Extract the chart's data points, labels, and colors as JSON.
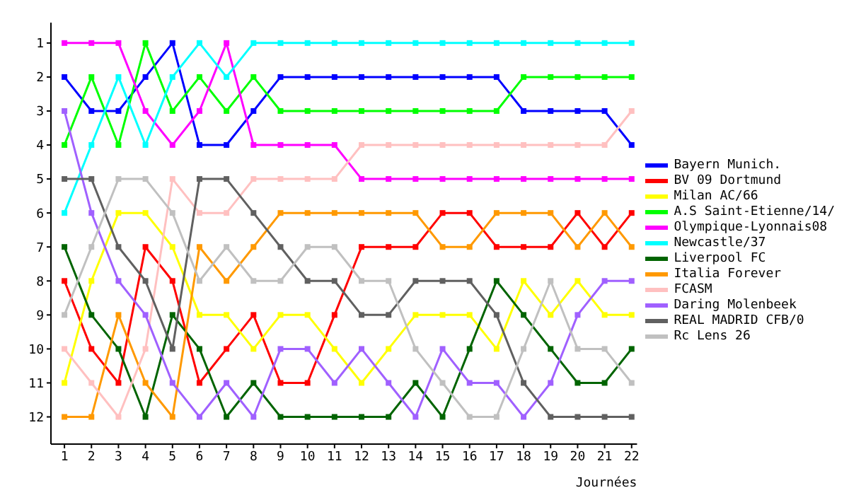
{
  "chart_data": {
    "type": "line",
    "xlabel": "Journées",
    "x": [
      1,
      2,
      3,
      4,
      5,
      6,
      7,
      8,
      9,
      10,
      11,
      12,
      13,
      14,
      15,
      16,
      17,
      18,
      19,
      20,
      21,
      22
    ],
    "xlim": [
      0.5,
      22.2
    ],
    "xticks": [
      1,
      2,
      3,
      4,
      5,
      6,
      7,
      8,
      9,
      10,
      11,
      12,
      13,
      14,
      15,
      16,
      17,
      18,
      19,
      20,
      21,
      22
    ],
    "ylim": [
      12.8,
      0.4
    ],
    "yticks": [
      1,
      2,
      3,
      4,
      5,
      6,
      7,
      8,
      9,
      10,
      11,
      12
    ],
    "grid": false,
    "legend": "right",
    "marker": "square",
    "line_style": "solid",
    "series": [
      {
        "name": "Bayern Munich.",
        "color": "#0000ff",
        "values": [
          2,
          3,
          3,
          2,
          1,
          4,
          4,
          3,
          2,
          2,
          2,
          2,
          2,
          2,
          2,
          2,
          2,
          3,
          3,
          3,
          3,
          4
        ]
      },
      {
        "name": "BV 09 Dortmund",
        "color": "#ff0000",
        "values": [
          8,
          10,
          11,
          7,
          8,
          11,
          10,
          9,
          11,
          11,
          9,
          7,
          7,
          7,
          6,
          6,
          7,
          7,
          7,
          6,
          7,
          6
        ]
      },
      {
        "name": "Milan AC/66",
        "color": "#ffff00",
        "values": [
          11,
          8,
          6,
          6,
          7,
          9,
          9,
          10,
          9,
          9,
          10,
          11,
          10,
          9,
          9,
          9,
          10,
          8,
          9,
          8,
          9,
          9
        ]
      },
      {
        "name": "A.S Saint-Etienne/14/",
        "color": "#00ff00",
        "values": [
          4,
          2,
          4,
          1,
          3,
          2,
          3,
          2,
          3,
          3,
          3,
          3,
          3,
          3,
          3,
          3,
          3,
          2,
          2,
          2,
          2,
          2
        ]
      },
      {
        "name": "Olympique-Lyonnais08",
        "color": "#ff00ff",
        "values": [
          1,
          1,
          1,
          3,
          4,
          3,
          1,
          4,
          4,
          4,
          4,
          5,
          5,
          5,
          5,
          5,
          5,
          5,
          5,
          5,
          5,
          5
        ]
      },
      {
        "name": "Newcastle/37",
        "color": "#00ffff",
        "values": [
          6,
          4,
          2,
          4,
          2,
          1,
          2,
          1,
          1,
          1,
          1,
          1,
          1,
          1,
          1,
          1,
          1,
          1,
          1,
          1,
          1,
          1
        ]
      },
      {
        "name": "Liverpool FC",
        "color": "#006400",
        "values": [
          7,
          9,
          10,
          12,
          9,
          10,
          12,
          11,
          12,
          12,
          12,
          12,
          12,
          11,
          12,
          10,
          8,
          9,
          10,
          11,
          11,
          10
        ]
      },
      {
        "name": "Italia Forever",
        "color": "#ff9900",
        "values": [
          12,
          12,
          9,
          11,
          12,
          7,
          8,
          7,
          6,
          6,
          6,
          6,
          6,
          6,
          7,
          7,
          6,
          6,
          6,
          7,
          6,
          7
        ]
      },
      {
        "name": "FCASM",
        "color": "#ffc0c0",
        "values": [
          10,
          11,
          12,
          10,
          5,
          6,
          6,
          5,
          5,
          5,
          5,
          4,
          4,
          4,
          4,
          4,
          4,
          4,
          4,
          4,
          4,
          3
        ]
      },
      {
        "name": "Daring Molenbeek",
        "color": "#a060ff",
        "values": [
          3,
          6,
          8,
          9,
          11,
          12,
          11,
          12,
          10,
          10,
          11,
          10,
          11,
          12,
          10,
          11,
          11,
          12,
          11,
          9,
          8,
          8
        ]
      },
      {
        "name": "REAL MADRID CFB/0",
        "color": "#606060",
        "values": [
          5,
          5,
          7,
          8,
          10,
          5,
          5,
          6,
          7,
          8,
          8,
          9,
          9,
          8,
          8,
          8,
          9,
          11,
          12,
          12,
          12,
          12
        ]
      },
      {
        "name": "Rc Lens 26",
        "color": "#c0c0c0",
        "values": [
          9,
          7,
          5,
          5,
          6,
          8,
          7,
          8,
          8,
          7,
          7,
          8,
          8,
          10,
          11,
          12,
          12,
          10,
          8,
          10,
          10,
          11
        ]
      }
    ]
  }
}
